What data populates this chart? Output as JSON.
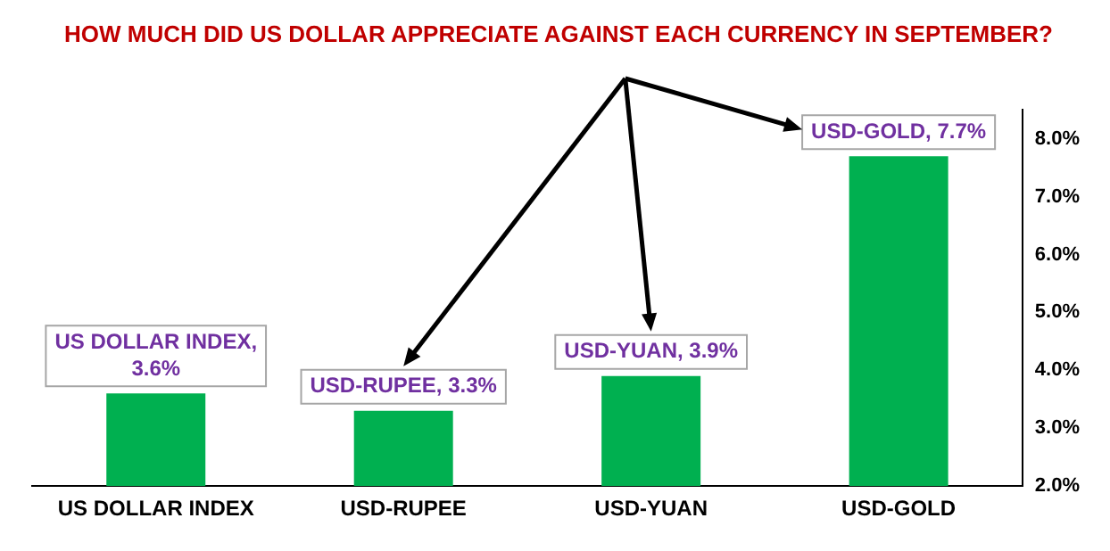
{
  "chart_data": {
    "type": "bar",
    "title": "HOW MUCH DID US DOLLAR APPRECIATE AGAINST EACH CURRENCY IN SEPTEMBER?",
    "categories": [
      "US DOLLAR INDEX",
      "USD-RUPEE",
      "USD-YUAN",
      "USD-GOLD"
    ],
    "values": [
      3.6,
      3.3,
      3.9,
      7.7
    ],
    "value_labels": [
      "US DOLLAR INDEX, 3.6%",
      "USD-RUPEE, 3.3%",
      "USD-YUAN, 3.9%",
      "USD-GOLD, 7.7%"
    ],
    "color": "#00b050",
    "ylim": [
      2,
      8.5
    ],
    "yticks": [
      {
        "value": 2,
        "label": "2.0%"
      },
      {
        "value": 3,
        "label": "3.0%"
      },
      {
        "value": 4,
        "label": "4.0%"
      },
      {
        "value": 5,
        "label": "5.0%"
      },
      {
        "value": 6,
        "label": "6.0%"
      },
      {
        "value": 7,
        "label": "7.0%"
      },
      {
        "value": 8,
        "label": "8.0%"
      }
    ],
    "grid": false,
    "legend": false
  }
}
